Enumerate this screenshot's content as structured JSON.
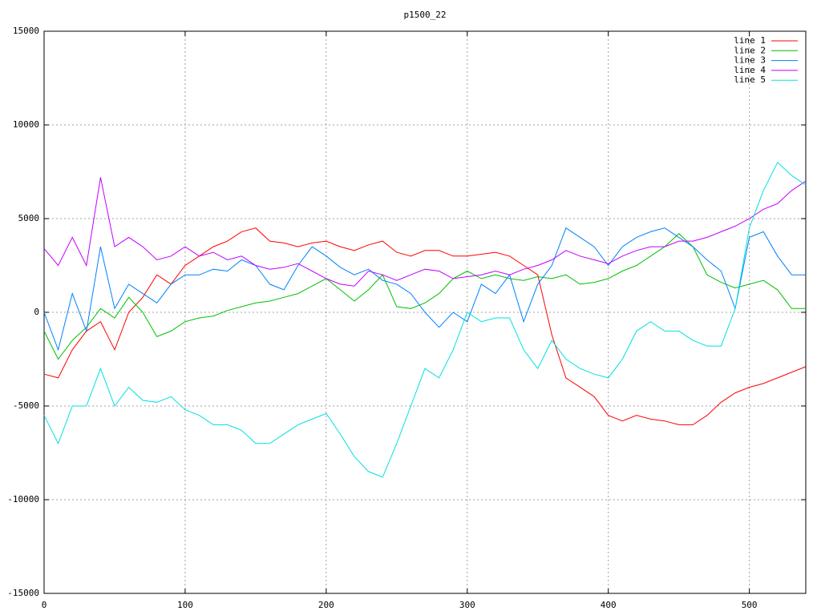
{
  "chart_data": {
    "type": "line",
    "title": "p1500_22",
    "x": [
      0,
      10,
      20,
      30,
      40,
      50,
      60,
      70,
      80,
      90,
      100,
      110,
      120,
      130,
      140,
      150,
      160,
      170,
      180,
      190,
      200,
      210,
      220,
      230,
      240,
      250,
      260,
      270,
      280,
      290,
      300,
      310,
      320,
      330,
      340,
      350,
      360,
      370,
      380,
      390,
      400,
      410,
      420,
      430,
      440,
      450,
      460,
      470,
      480,
      490,
      500,
      510,
      520,
      530,
      540
    ],
    "series": [
      {
        "name": "line 1",
        "color": "#ff0000",
        "values": [
          -3300,
          -3500,
          -2000,
          -1000,
          -500,
          -2000,
          0,
          800,
          2000,
          1500,
          2500,
          3000,
          3500,
          3800,
          4300,
          4500,
          3800,
          3700,
          3500,
          3700,
          3800,
          3500,
          3300,
          3600,
          3800,
          3200,
          3000,
          3300,
          3300,
          3000,
          3000,
          3100,
          3200,
          3000,
          2500,
          2000,
          -1200,
          -3500,
          -4000,
          -4500,
          -5500,
          -5800,
          -5500,
          -5700,
          -5800,
          -6000,
          -6000,
          -5500,
          -4800,
          -4300,
          -4000,
          -3800,
          -3500,
          -3200,
          -2900
        ]
      },
      {
        "name": "line 2",
        "color": "#00c000",
        "values": [
          -1000,
          -2500,
          -1500,
          -800,
          200,
          -300,
          800,
          0,
          -1300,
          -1000,
          -500,
          -300,
          -200,
          100,
          300,
          500,
          600,
          800,
          1000,
          1400,
          1800,
          1200,
          600,
          1200,
          2000,
          300,
          200,
          500,
          1000,
          1800,
          2200,
          1800,
          2000,
          1800,
          1700,
          1900,
          1800,
          2000,
          1500,
          1600,
          1800,
          2200,
          2500,
          3000,
          3500,
          4200,
          3500,
          2000,
          1600,
          1300,
          1500,
          1700,
          1200,
          200,
          200
        ]
      },
      {
        "name": "line 3",
        "color": "#0080ff",
        "values": [
          0,
          -2000,
          1000,
          -1000,
          3500,
          200,
          1500,
          1000,
          500,
          1500,
          2000,
          2000,
          2300,
          2200,
          2800,
          2500,
          1500,
          1200,
          2500,
          3500,
          3000,
          2400,
          2000,
          2300,
          1700,
          1500,
          1000,
          0,
          -800,
          0,
          -500,
          1500,
          1000,
          2000,
          -500,
          1500,
          2500,
          4500,
          4000,
          3500,
          2500,
          3500,
          4000,
          4300,
          4500,
          4000,
          3500,
          2800,
          2200,
          200,
          4000,
          4300,
          3000,
          2000,
          2000
        ]
      },
      {
        "name": "line 4",
        "color": "#c000ff",
        "values": [
          3400,
          2500,
          4000,
          2500,
          7200,
          3500,
          4000,
          3500,
          2800,
          3000,
          3500,
          3000,
          3200,
          2800,
          3000,
          2500,
          2300,
          2400,
          2600,
          2200,
          1800,
          1500,
          1400,
          2200,
          2000,
          1700,
          2000,
          2300,
          2200,
          1800,
          1900,
          2000,
          2200,
          2000,
          2300,
          2500,
          2800,
          3300,
          3000,
          2800,
          2600,
          3000,
          3300,
          3500,
          3500,
          3800,
          3800,
          4000,
          4300,
          4600,
          5000,
          5500,
          5800,
          6500,
          7000
        ]
      },
      {
        "name": "line 5",
        "color": "#00e0e0",
        "values": [
          -5500,
          -7000,
          -5000,
          -5000,
          -3000,
          -5000,
          -4000,
          -4700,
          -4800,
          -4500,
          -5200,
          -5500,
          -6000,
          -6000,
          -6300,
          -7000,
          -7000,
          -6500,
          -6000,
          -5700,
          -5400,
          -6500,
          -7700,
          -8500,
          -8800,
          -7000,
          -5000,
          -3000,
          -3500,
          -2000,
          0,
          -500,
          -300,
          -300,
          -2000,
          -3000,
          -1500,
          -2500,
          -3000,
          -3300,
          -3500,
          -2500,
          -1000,
          -500,
          -1000,
          -1000,
          -1500,
          -1800,
          -1800,
          200,
          4500,
          6500,
          8000,
          7300,
          6800
        ]
      }
    ],
    "xlim": [
      0,
      540
    ],
    "xticks": [
      0,
      100,
      200,
      300,
      400,
      500
    ],
    "ylim": [
      -15000,
      15000
    ],
    "yticks": [
      -15000,
      -10000,
      -5000,
      0,
      5000,
      10000,
      15000
    ],
    "grid": true,
    "legend": "top-right"
  }
}
